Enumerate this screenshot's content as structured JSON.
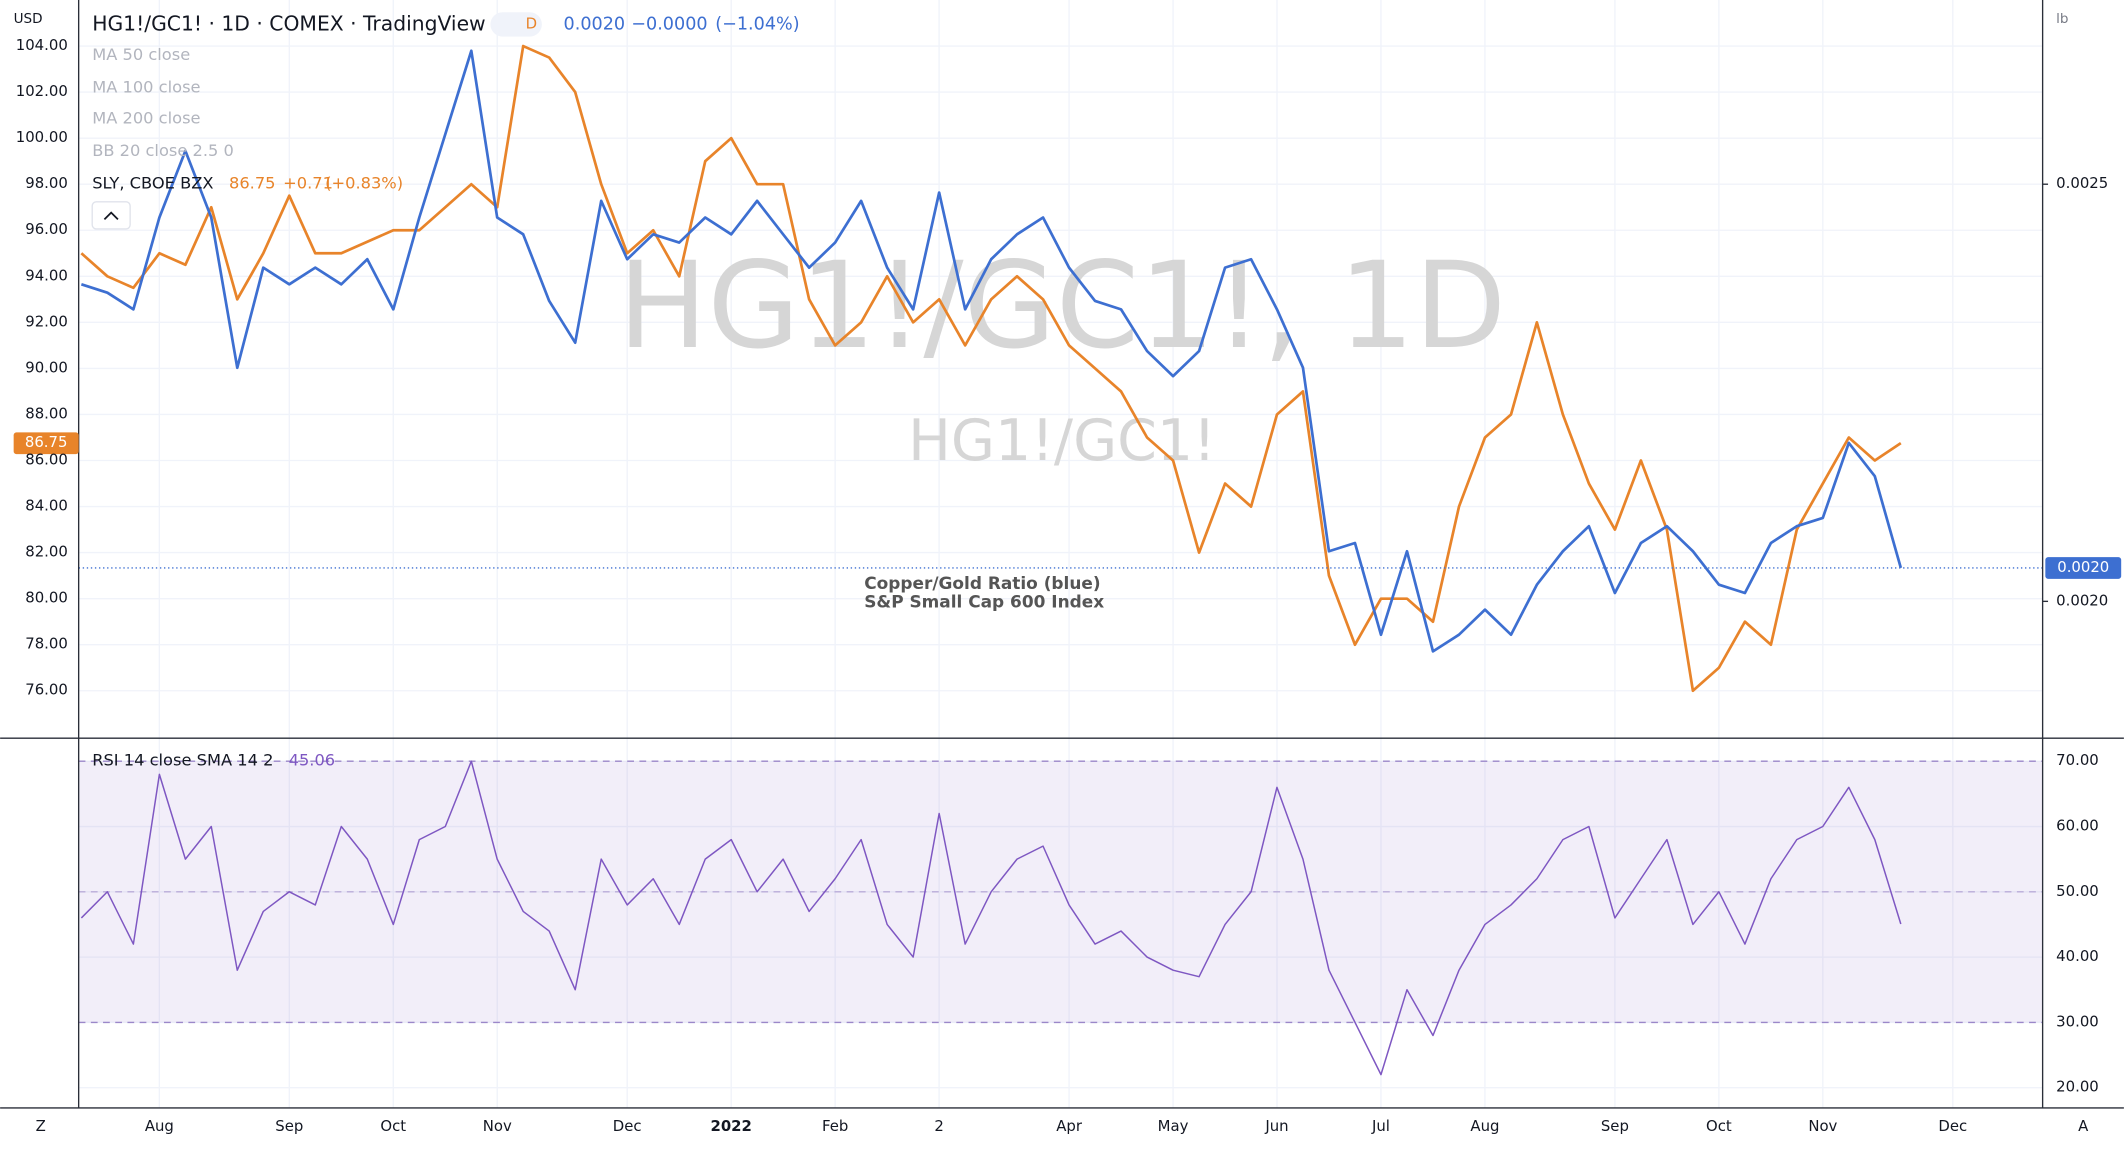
{
  "header": {
    "currency": "USD",
    "interval": "D",
    "value": "0.0020",
    "change": "−0.0000",
    "change_pct": "(−1.04%)",
    "unit": "lb"
  },
  "indicators": [
    "MA 50 close",
    "MA 100 close",
    "MA 200 close",
    "BB 20 close 2.5 0"
  ],
  "compare": {
    "value": "86.75",
    "change": "+0.71",
    "change_pct": "(+0.83%)"
  },
  "watermark": [
    "HG1!/GC1!, 1D",
    "HG1!/GC1!"
  ],
  "footer": {
    "left": "Z",
    "right": "A"
  },
  "chart_data": [
    {
      "type": "line",
      "annotations": [
        "Copper/Gold Ratio (blue)",
        "S&P Small Cap 600 Index"
      ],
      "categories": [
        null,
        null,
        null,
        "Aug",
        null,
        null,
        null,
        null,
        "Sep",
        null,
        null,
        null,
        "Oct",
        null,
        null,
        null,
        "Nov",
        null,
        null,
        null,
        null,
        "Dec",
        null,
        null,
        null,
        "2022",
        null,
        null,
        null,
        "Feb",
        null,
        null,
        null,
        "2",
        null,
        null,
        null,
        null,
        "Apr",
        null,
        null,
        null,
        "May",
        null,
        null,
        null,
        "Jun",
        null,
        null,
        null,
        "Jul",
        null,
        null,
        null,
        "Aug",
        null,
        null,
        null,
        null,
        "Sep",
        null,
        null,
        null,
        "Oct",
        null,
        null,
        null,
        "Nov",
        null,
        null,
        null,
        null,
        "Dec",
        null,
        null
      ],
      "series": [
        {
          "name": "SLY, CBOE BZX",
          "color": "#e8842a",
          "axis": "y",
          "values": [
            95,
            94,
            93.5,
            95,
            94.5,
            97,
            93,
            95,
            97.5,
            95,
            95,
            95.5,
            96,
            96,
            97,
            98,
            97,
            104,
            103.5,
            102,
            98,
            95,
            96,
            94,
            99,
            100,
            98,
            98,
            93,
            91,
            92,
            94,
            92,
            93,
            91,
            93,
            94,
            93,
            91,
            90,
            89,
            87,
            86,
            82,
            85,
            84,
            88,
            89,
            81,
            78,
            80,
            80,
            79,
            84,
            87,
            88,
            92,
            88,
            85,
            83,
            86,
            83,
            76,
            77,
            79,
            78,
            83,
            85,
            87,
            86,
            86.75,
            null,
            null,
            null,
            null
          ]
        },
        {
          "name": "HG1!/GC1! · 1D · COMEX · TradingView",
          "color": "#3d6fd1",
          "axis": "y2",
          "values": [
            0.00238,
            0.00237,
            0.00235,
            0.00246,
            0.00254,
            0.00246,
            0.00228,
            0.0024,
            0.00238,
            0.0024,
            0.00238,
            0.00241,
            0.00235,
            0.00246,
            0.00256,
            0.00266,
            0.00246,
            0.00244,
            0.00236,
            0.00231,
            0.00248,
            0.00241,
            0.00244,
            0.00243,
            0.00246,
            0.00244,
            0.00248,
            0.00244,
            0.0024,
            0.00243,
            0.00248,
            0.0024,
            0.00235,
            0.00249,
            0.00235,
            0.00241,
            0.00244,
            0.00246,
            0.0024,
            0.00236,
            0.00235,
            0.0023,
            0.00227,
            0.0023,
            0.0024,
            0.00241,
            0.00235,
            0.00228,
            0.00206,
            0.00207,
            0.00196,
            0.00206,
            0.00194,
            0.00196,
            0.00199,
            0.00196,
            0.00202,
            0.00206,
            0.00209,
            0.00201,
            0.00207,
            0.00209,
            0.00206,
            0.00202,
            0.00201,
            0.00207,
            0.00209,
            0.0021,
            0.00219,
            0.00215,
            0.00204,
            null,
            null,
            null,
            null
          ]
        }
      ],
      "ylim": [
        73.94,
        106
      ],
      "yticks": [
        {
          "value": 76,
          "label": "76.00"
        },
        {
          "value": 78,
          "label": "78.00"
        },
        {
          "value": 80,
          "label": "80.00"
        },
        {
          "value": 82,
          "label": "82.00"
        },
        {
          "value": 84,
          "label": "84.00"
        },
        {
          "value": 86,
          "label": "86.00"
        },
        {
          "value": 88,
          "label": "88.00"
        },
        {
          "value": 90,
          "label": "90.00"
        },
        {
          "value": 92,
          "label": "92.00"
        },
        {
          "value": 94,
          "label": "94.00"
        },
        {
          "value": 96,
          "label": "96.00"
        },
        {
          "value": 98,
          "label": "98.00"
        },
        {
          "value": 100,
          "label": "100.00"
        },
        {
          "value": 102,
          "label": "102.00"
        },
        {
          "value": 104,
          "label": "104.00"
        }
      ],
      "y2lim": [
        0.001836,
        0.0027208
      ],
      "y2ticks": [
        {
          "value": 0.0025,
          "label": "0.0025"
        },
        {
          "value": 0.002,
          "label": "0.0020"
        }
      ],
      "grid": true
    },
    {
      "type": "line",
      "series": [
        {
          "name": "RSI 14 close SMA 14 2",
          "color": "#7e57c2",
          "values": [
            46,
            50,
            42,
            68,
            55,
            60,
            38,
            47,
            50,
            48,
            60,
            55,
            45,
            58,
            60,
            70,
            55,
            47,
            44,
            35,
            55,
            48,
            52,
            45,
            55,
            58,
            50,
            55,
            47,
            52,
            58,
            45,
            40,
            62,
            42,
            50,
            55,
            57,
            48,
            42,
            44,
            40,
            38,
            37,
            45,
            50,
            66,
            55,
            38,
            30,
            22,
            35,
            28,
            38,
            45,
            48,
            52,
            58,
            60,
            46,
            52,
            58,
            45,
            50,
            42,
            52,
            58,
            60,
            66,
            58,
            45.06,
            null,
            null,
            null,
            null
          ]
        }
      ],
      "value_label": "45.06",
      "band": [
        30,
        70
      ],
      "ylim": [
        16.9,
        73.53
      ],
      "yticks": [
        {
          "value": 20,
          "label": "20.00"
        },
        {
          "value": 30,
          "label": "30.00"
        },
        {
          "value": 40,
          "label": "40.00"
        },
        {
          "value": 50,
          "label": "50.00"
        },
        {
          "value": 60,
          "label": "60.00"
        },
        {
          "value": 70,
          "label": "70.00"
        }
      ]
    }
  ]
}
